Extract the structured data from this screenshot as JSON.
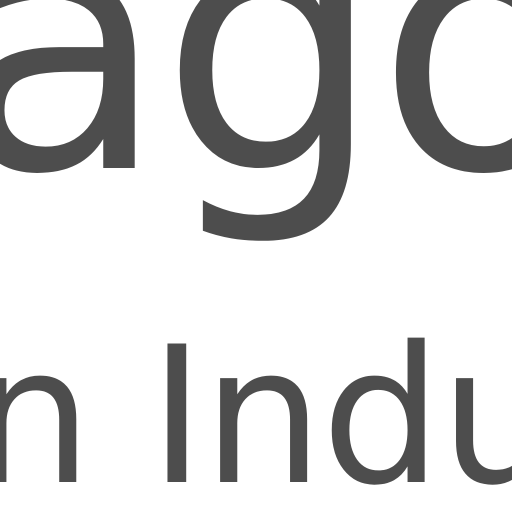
{
  "content": {
    "line_1": "ago",
    "line_2": "n Indu"
  },
  "colors": {
    "text": "#4d4d4d",
    "background": "#ffffff"
  }
}
